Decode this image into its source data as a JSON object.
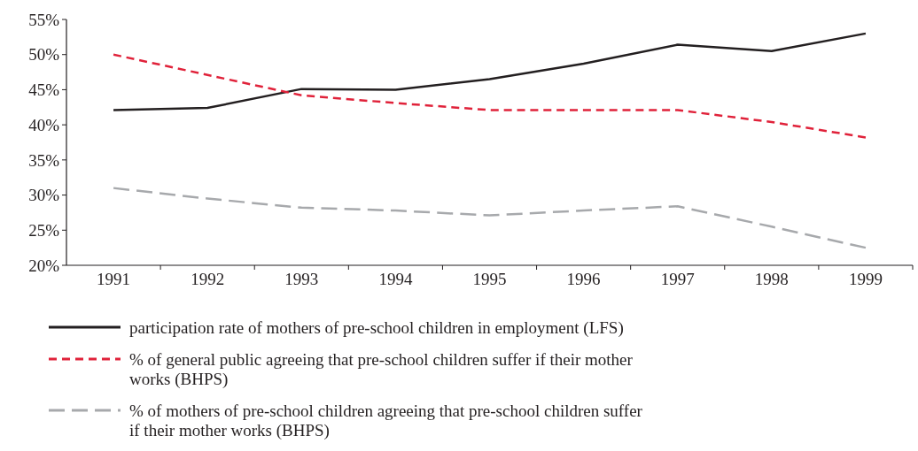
{
  "chart_data": {
    "type": "line",
    "categories": [
      "1991",
      "1992",
      "1993",
      "1994",
      "1995",
      "1996",
      "1997",
      "1998",
      "1999"
    ],
    "series": [
      {
        "name": "participation rate of mothers of pre-school children in employment (LFS)",
        "color": "#231f20",
        "line_style": "solid",
        "values": [
          42.1,
          42.4,
          45.1,
          45,
          46.5,
          48.7,
          51.4,
          50.5,
          53
        ]
      },
      {
        "name": "% of general public agreeing that pre-school children suffer if their mother works (BHPS)",
        "color": "#e0223a",
        "line_style": "dashed",
        "values": [
          50,
          47.1,
          44.2,
          43.1,
          42.1,
          42.1,
          42.1,
          40.4,
          38.2
        ]
      },
      {
        "name": "% of mothers of pre-school children agreeing that pre-school children suffer if their mother works (BHPS)",
        "color": "#a7a9ac",
        "line_style": "dashed",
        "values": [
          31,
          29.5,
          28.2,
          27.8,
          27.1,
          27.8,
          28.4,
          25.5,
          22.5
        ]
      }
    ],
    "ylim": [
      20,
      55
    ],
    "yticks": [
      {
        "value": 20,
        "label": "20%"
      },
      {
        "value": 25,
        "label": "25%"
      },
      {
        "value": 30,
        "label": "30%"
      },
      {
        "value": 35,
        "label": "35%"
      },
      {
        "value": 40,
        "label": "40%"
      },
      {
        "value": 45,
        "label": "45%"
      },
      {
        "value": 50,
        "label": "50%"
      },
      {
        "value": 55,
        "label": "55%"
      }
    ],
    "grid": false,
    "legend": "bottom",
    "marker": "none"
  }
}
